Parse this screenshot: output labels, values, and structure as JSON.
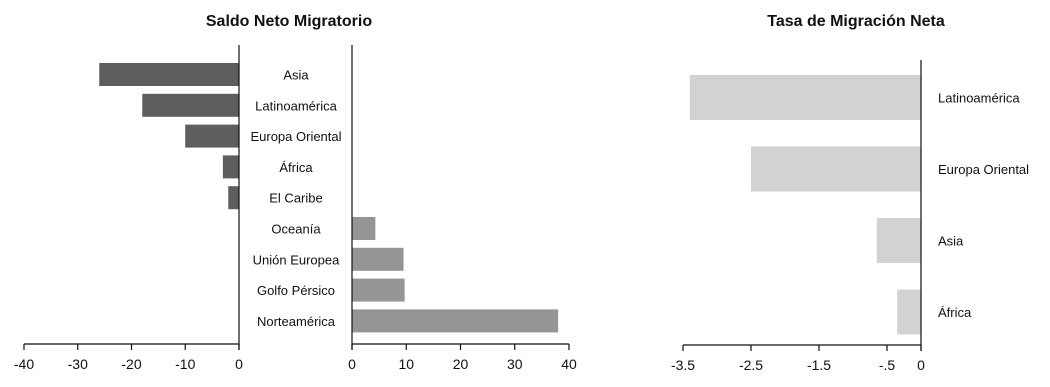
{
  "colors": {
    "negative_bar": "#5e5e5e",
    "positive_bar": "#959595",
    "rate_bar": "#d2d2d2",
    "axis": "#111111"
  },
  "chart_data": [
    {
      "type": "bar",
      "orientation": "horizontal",
      "title": "Saldo Neto Migratorio",
      "categories": [
        "Asia",
        "Latinoamérica",
        "Europa Oriental",
        "África",
        "El Caribe",
        "Oceanía",
        "Unión Europea",
        "Golfo Pérsico",
        "Norteamérica"
      ],
      "values": [
        -26,
        -18,
        -10,
        -3,
        -2,
        4.3,
        9.5,
        9.7,
        38
      ],
      "xlim": [
        -40,
        40
      ],
      "xticks_left": [
        "-40",
        "-30",
        "-20",
        "-10",
        "0"
      ],
      "xticks_right": [
        "0",
        "10",
        "20",
        "30",
        "40"
      ],
      "grid": false
    },
    {
      "type": "bar",
      "orientation": "horizontal",
      "title": "Tasa de Migración Neta",
      "categories": [
        "Latinoamérica",
        "Europa Oriental",
        "Asia",
        "África"
      ],
      "values": [
        -3.4,
        -2.5,
        -0.65,
        -0.35
      ],
      "xlim": [
        -3.5,
        0
      ],
      "xticks": [
        "-3.5",
        "-2.5",
        "-1.5",
        "-.5",
        "0"
      ],
      "grid": false
    }
  ]
}
